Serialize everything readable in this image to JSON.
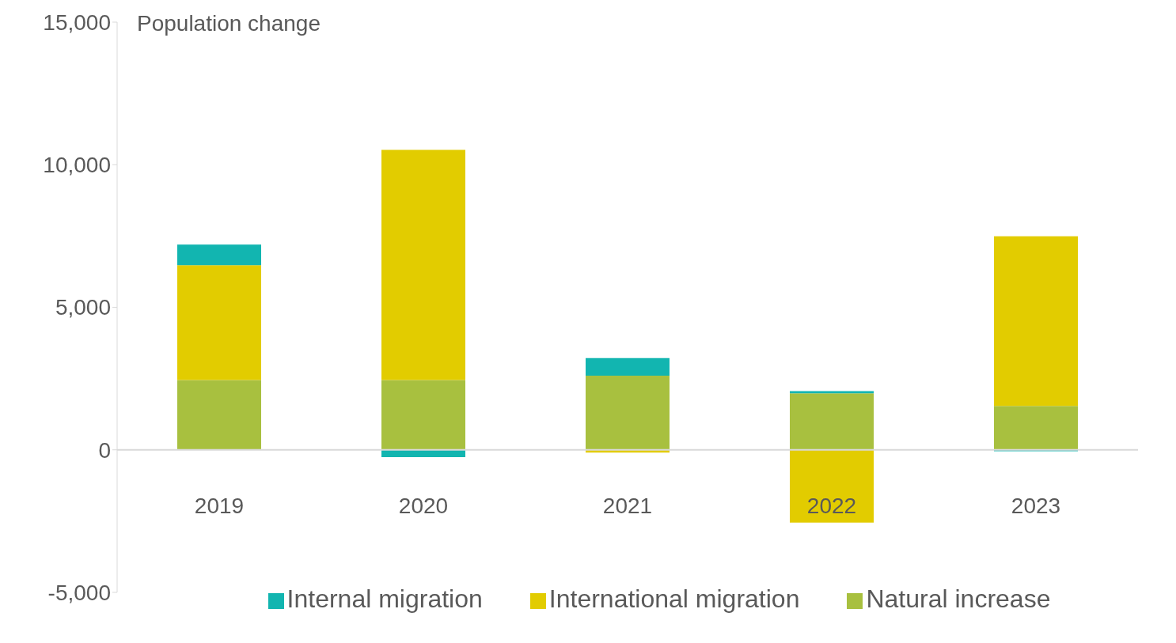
{
  "chart_data": {
    "type": "bar",
    "ylabel": "Population change",
    "categories": [
      "2019",
      "2020",
      "2021",
      "2022",
      "2023"
    ],
    "stacked": true,
    "series": [
      {
        "name": "Natural increase",
        "color": "#a8c03f",
        "values": [
          2450,
          2450,
          2600,
          1980,
          1540
        ]
      },
      {
        "name": "International migration",
        "color": "#e2cc00",
        "values": [
          4030,
          8070,
          -100,
          -2550,
          5950
        ]
      },
      {
        "name": "Internal migration",
        "color": "#12b5b0",
        "values": [
          720,
          -260,
          620,
          80,
          -50
        ]
      }
    ],
    "ylim": [
      -5000,
      15000
    ],
    "yticks": [
      {
        "value": -5000,
        "label": "-5,000"
      },
      {
        "value": 0,
        "label": "0"
      },
      {
        "value": 5000,
        "label": "5,000"
      },
      {
        "value": 10000,
        "label": "10,000"
      },
      {
        "value": 15000,
        "label": "15,000"
      }
    ],
    "legend": "bottom"
  }
}
